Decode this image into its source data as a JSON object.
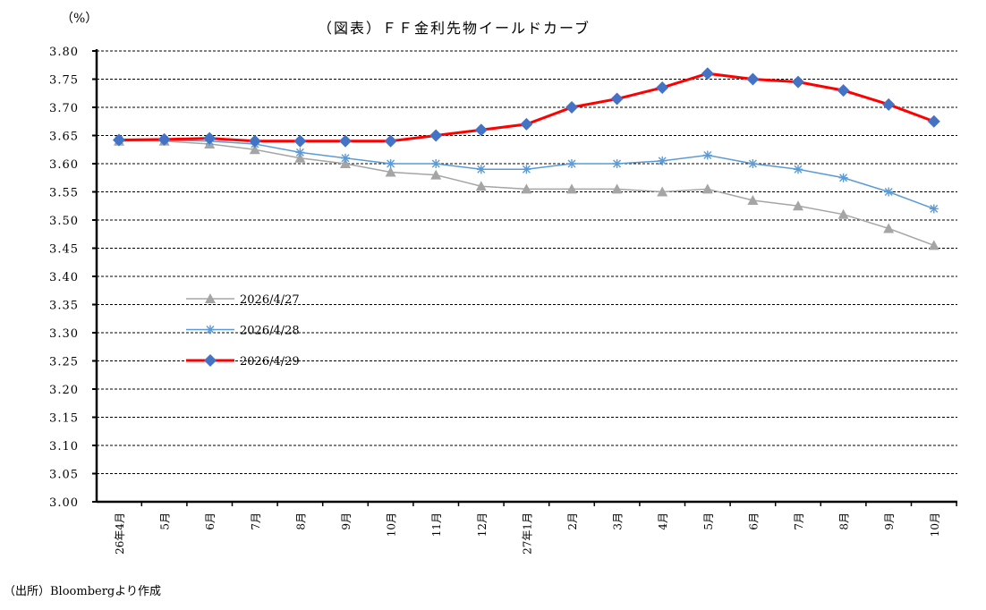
{
  "chart_data": {
    "type": "line",
    "title": "（図表）ＦＦ金利先物イールドカーブ",
    "ylabel": "（%）",
    "xlabel": "",
    "ylim": [
      3.0,
      3.8
    ],
    "yticks": [
      "3.00",
      "3.05",
      "3.10",
      "3.15",
      "3.20",
      "3.25",
      "3.30",
      "3.35",
      "3.40",
      "3.45",
      "3.50",
      "3.55",
      "3.60",
      "3.65",
      "3.70",
      "3.75",
      "3.80"
    ],
    "grid": true,
    "legend_placement": "center-left",
    "categories": [
      "26年4月",
      "5月",
      "6月",
      "7月",
      "8月",
      "9月",
      "10月",
      "11月",
      "12月",
      "27年1月",
      "2月",
      "3月",
      "4月",
      "5月",
      "6月",
      "7月",
      "8月",
      "9月",
      "10月"
    ],
    "series": [
      {
        "name": "2026/4/27",
        "color": "#a5a5a5",
        "marker": "triangle",
        "values": [
          3.64,
          3.64,
          3.635,
          3.625,
          3.61,
          3.6,
          3.585,
          3.58,
          3.56,
          3.555,
          3.555,
          3.555,
          3.55,
          3.555,
          3.535,
          3.525,
          3.51,
          3.485,
          3.455
        ]
      },
      {
        "name": "2026/4/28",
        "color": "#5b9bd5",
        "marker": "star",
        "values": [
          3.642,
          3.642,
          3.64,
          3.635,
          3.62,
          3.61,
          3.6,
          3.6,
          3.59,
          3.59,
          3.6,
          3.6,
          3.605,
          3.615,
          3.6,
          3.59,
          3.575,
          3.55,
          3.52
        ]
      },
      {
        "name": "2026/4/29",
        "color": "#ff0000",
        "marker_color": "#4472c4",
        "marker": "diamond",
        "values": [
          3.642,
          3.643,
          3.645,
          3.64,
          3.64,
          3.64,
          3.64,
          3.65,
          3.66,
          3.67,
          3.7,
          3.715,
          3.735,
          3.76,
          3.75,
          3.745,
          3.73,
          3.705,
          3.675
        ]
      }
    ]
  },
  "source": "（出所）Bloombergより作成"
}
